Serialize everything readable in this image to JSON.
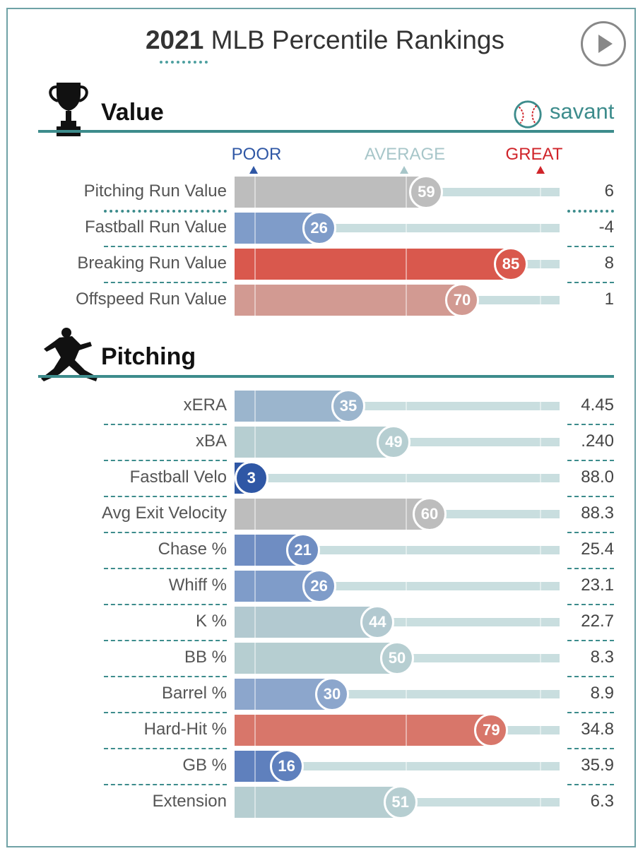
{
  "header": {
    "title_year": "2021",
    "title_rest": "MLB Percentile Rankings",
    "brand": "savant"
  },
  "scale": {
    "poor": "POOR",
    "average": "AVERAGE",
    "great": "GREAT"
  },
  "colors": {
    "poor": "#2f57a5",
    "average": "#a7c6c9",
    "great": "#d0242a",
    "accent": "#3d8c8c"
  },
  "chart_data": {
    "type": "bar",
    "xlim": [
      0,
      100
    ],
    "sections": [
      {
        "title": "Value",
        "icon": "trophy-icon",
        "rows": [
          {
            "label": "Pitching Run Value",
            "percentile": 59,
            "value": "6",
            "color": "#bdbdbd"
          },
          {
            "label": "Fastball Run Value",
            "percentile": 26,
            "value": "-4",
            "color": "#7f9cc9"
          },
          {
            "label": "Breaking Run Value",
            "percentile": 85,
            "value": "8",
            "color": "#d9584d"
          },
          {
            "label": "Offspeed Run Value",
            "percentile": 70,
            "value": "1",
            "color": "#d29a92"
          }
        ]
      },
      {
        "title": "Pitching",
        "icon": "pitcher-icon",
        "rows": [
          {
            "label": "xERA",
            "percentile": 35,
            "value": "4.45",
            "color": "#9bb5cd"
          },
          {
            "label": "xBA",
            "percentile": 49,
            "value": ".240",
            "color": "#b6ced1"
          },
          {
            "label": "Fastball Velo",
            "percentile": 3,
            "value": "88.0",
            "color": "#2f57a5"
          },
          {
            "label": "Avg Exit Velocity",
            "percentile": 60,
            "value": "88.3",
            "color": "#bdbdbd"
          },
          {
            "label": "Chase %",
            "percentile": 21,
            "value": "25.4",
            "color": "#6f8dc2"
          },
          {
            "label": "Whiff %",
            "percentile": 26,
            "value": "23.1",
            "color": "#7f9cc9"
          },
          {
            "label": "K %",
            "percentile": 44,
            "value": "22.7",
            "color": "#b2c9d0"
          },
          {
            "label": "BB %",
            "percentile": 50,
            "value": "8.3",
            "color": "#b6ced1"
          },
          {
            "label": "Barrel %",
            "percentile": 30,
            "value": "8.9",
            "color": "#8ca6cc"
          },
          {
            "label": "Hard-Hit %",
            "percentile": 79,
            "value": "34.8",
            "color": "#d8766a"
          },
          {
            "label": "GB %",
            "percentile": 16,
            "value": "35.9",
            "color": "#5f80bd"
          },
          {
            "label": "Extension",
            "percentile": 51,
            "value": "6.3",
            "color": "#b6ced1"
          }
        ]
      }
    ]
  }
}
